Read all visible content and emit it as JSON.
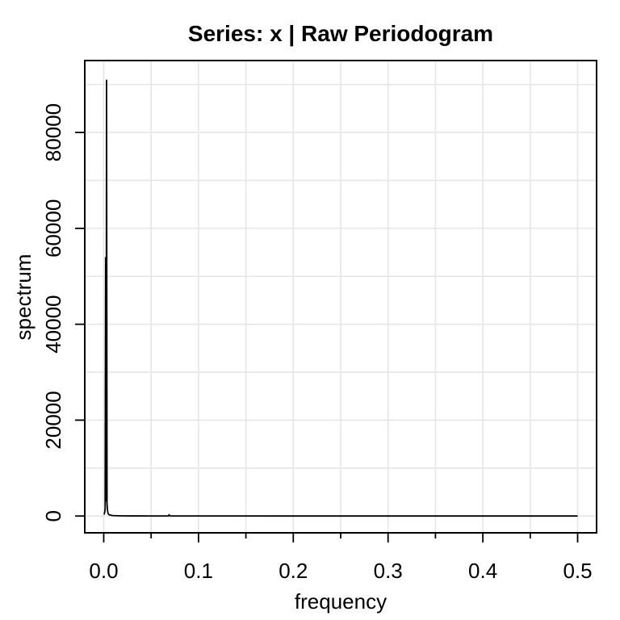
{
  "chart_data": {
    "type": "line",
    "title": "Series: x  |  Raw Periodogram",
    "xlabel": "frequency",
    "ylabel": "spectrum",
    "xlim": [
      -0.02,
      0.52
    ],
    "ylim": [
      -3500,
      95000
    ],
    "grid": true,
    "x_ticks": [
      0.0,
      0.1,
      0.2,
      0.3,
      0.4,
      0.5
    ],
    "x_tick_labels": [
      "0.0",
      "0.1",
      "0.2",
      "0.3",
      "0.4",
      "0.5"
    ],
    "x_minor_ticks": [
      0.05,
      0.15,
      0.25,
      0.35,
      0.45
    ],
    "y_ticks": [
      0,
      20000,
      40000,
      60000,
      80000
    ],
    "y_tick_labels": [
      "0",
      "20000",
      "40000",
      "60000",
      "80000"
    ],
    "series": [
      {
        "x": [
          0.0005,
          0.001,
          0.0015,
          0.002,
          0.0025,
          0.003,
          0.0035,
          0.004,
          0.0045,
          0.005,
          0.0055,
          0.006,
          0.007,
          0.008,
          0.009,
          0.01,
          0.012,
          0.015,
          0.02,
          0.03,
          0.05,
          0.068,
          0.069,
          0.07,
          0.1,
          0.2,
          0.3,
          0.4,
          0.5
        ],
        "values": [
          300,
          800,
          1500,
          54000,
          3000,
          91000,
          2500,
          1200,
          600,
          400,
          300,
          250,
          200,
          150,
          120,
          100,
          80,
          60,
          40,
          30,
          20,
          20,
          250,
          20,
          10,
          5,
          3,
          2,
          1
        ]
      }
    ]
  }
}
